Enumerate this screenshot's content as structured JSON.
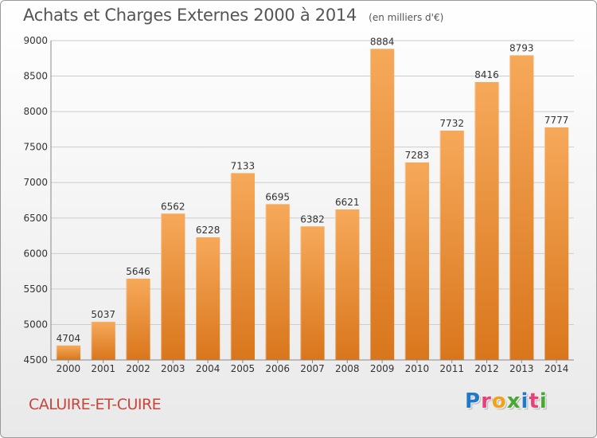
{
  "header": {
    "title": "Achats et Charges Externes 2000 à 2014",
    "subtitle": "(en milliers d'€)"
  },
  "footer": {
    "commune": "CALUIRE-ET-CUIRE",
    "brand": "Proxiti",
    "brand_letter_colors": [
      "#1f78c8",
      "#e8417a",
      "#f0a21c",
      "#4aa832",
      "#1f78c8",
      "#e8417a",
      "#4aa832"
    ]
  },
  "colors": {
    "bar_top": "#f6a95a",
    "bar_bottom": "#d9761c",
    "grid": "#cccccc",
    "text": "#333333"
  },
  "chart_data": {
    "type": "bar",
    "title": "Achats et Charges Externes 2000 à 2014",
    "subtitle": "(en milliers d'€)",
    "categories": [
      "2000",
      "2001",
      "2002",
      "2003",
      "2004",
      "2005",
      "2006",
      "2007",
      "2008",
      "2009",
      "2010",
      "2011",
      "2012",
      "2013",
      "2014"
    ],
    "values": [
      4704,
      5037,
      5646,
      6562,
      6228,
      7133,
      6695,
      6382,
      6621,
      8884,
      7283,
      7732,
      8416,
      8793,
      7777
    ],
    "data_labels": [
      "4704",
      "5037",
      "5646",
      "6562",
      "6228",
      "7133",
      "6695",
      "6382",
      "6621",
      "8884",
      "7283",
      "7732",
      "8416",
      "8793",
      "7777"
    ],
    "y_ticks": [
      "4500",
      "5000",
      "5500",
      "6000",
      "6500",
      "7000",
      "7500",
      "8000",
      "8500",
      "9000"
    ],
    "ylim": [
      4500,
      9000
    ],
    "grid": true,
    "legend": "none"
  }
}
